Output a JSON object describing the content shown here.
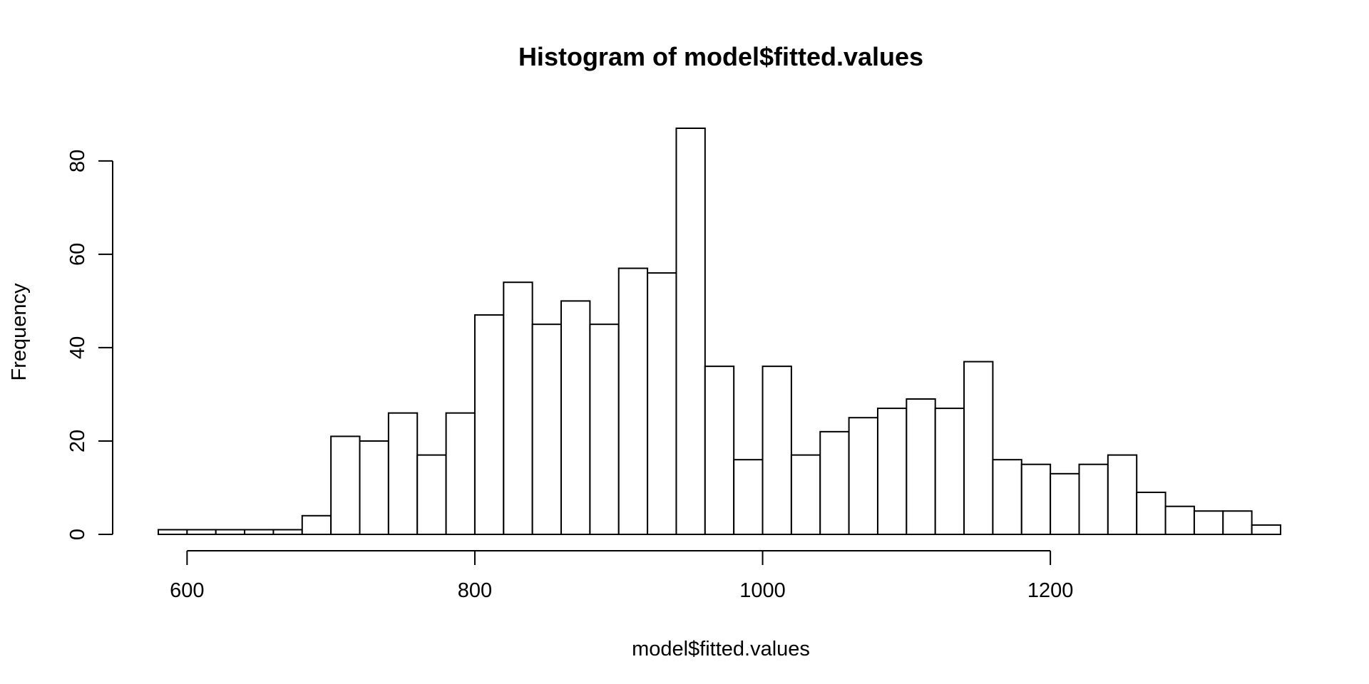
{
  "chart_data": {
    "type": "bar",
    "title": "Histogram of model$fitted.values",
    "xlabel": "model$fitted.values",
    "ylabel": "Frequency",
    "bin_width": 20,
    "bin_start": 580,
    "values": [
      1,
      1,
      1,
      1,
      1,
      4,
      21,
      20,
      26,
      17,
      26,
      47,
      54,
      45,
      50,
      45,
      57,
      56,
      87,
      36,
      16,
      36,
      17,
      22,
      25,
      27,
      29,
      27,
      37,
      16,
      15,
      13,
      15,
      17,
      9,
      6,
      5,
      5,
      2
    ],
    "xlim": [
      580,
      1360
    ],
    "ylim": [
      0,
      87
    ],
    "x_ticks": [
      600,
      800,
      1000,
      1200
    ],
    "x_tick_labels": [
      "600",
      "800",
      "1000",
      "1200"
    ],
    "y_ticks": [
      0,
      20,
      40,
      60,
      80
    ],
    "y_tick_labels": [
      "0",
      "20",
      "40",
      "60",
      "80"
    ],
    "bar_fill": "#ffffff",
    "bar_stroke": "#000000",
    "grid": false
  }
}
